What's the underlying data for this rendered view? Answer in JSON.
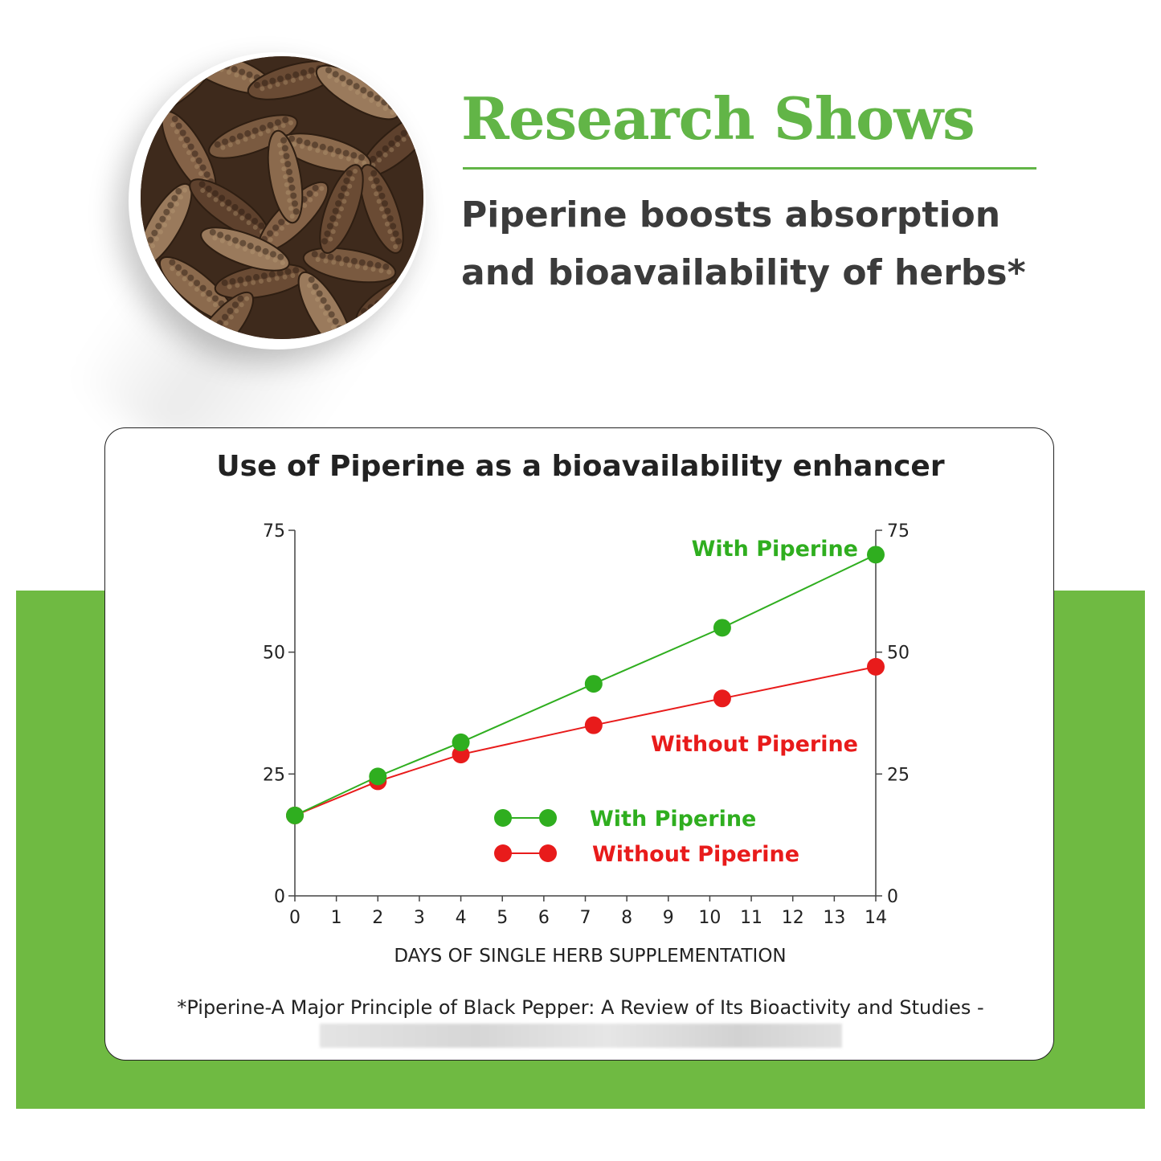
{
  "header": {
    "title": "Research Shows",
    "subtitle_line1": "Piperine boosts absorption",
    "subtitle_line2": "and bioavailability of herbs*"
  },
  "photo": {
    "icon": "long-pepper-photo"
  },
  "colors": {
    "accent_green": "#62b547",
    "band_green": "#6fba42",
    "series_green": "#2fae1f",
    "series_red": "#e81b1b",
    "text_dark": "#3b3b3b"
  },
  "chart_data": {
    "type": "line",
    "title": "Use of Piperine as a bioavailability enhancer",
    "xlabel": "DAYS OF SINGLE HERB SUPPLEMENTATION",
    "ylabel": "",
    "xlim": [
      0,
      14
    ],
    "ylim": [
      0,
      75
    ],
    "x_ticks": [
      "0",
      "1",
      "2",
      "3",
      "4",
      "5",
      "6",
      "7",
      "8",
      "9",
      "10",
      "11",
      "12",
      "13",
      "14"
    ],
    "y_ticks_left": [
      "0",
      "25",
      "50",
      "75"
    ],
    "y_ticks_right": [
      "0",
      "25",
      "50",
      "75"
    ],
    "grid": false,
    "legend_position": "center",
    "series": [
      {
        "name": "With Piperine",
        "color": "#2fae1f",
        "points": [
          [
            0,
            16.5
          ],
          [
            2,
            24.5
          ],
          [
            4,
            31.5
          ],
          [
            7.2,
            43.5
          ],
          [
            10.3,
            55
          ],
          [
            14,
            70
          ]
        ]
      },
      {
        "name": "Without Piperine",
        "color": "#e81b1b",
        "points": [
          [
            0,
            16.5
          ],
          [
            2,
            23.5
          ],
          [
            4,
            29
          ],
          [
            7.2,
            35
          ],
          [
            10.3,
            40.5
          ],
          [
            14,
            47
          ]
        ]
      }
    ],
    "annotations": [
      "With Piperine",
      "Without Piperine"
    ]
  },
  "citation": "*Piperine-A Major Principle of Black Pepper: A Review of Its Bioactivity and Studies -"
}
